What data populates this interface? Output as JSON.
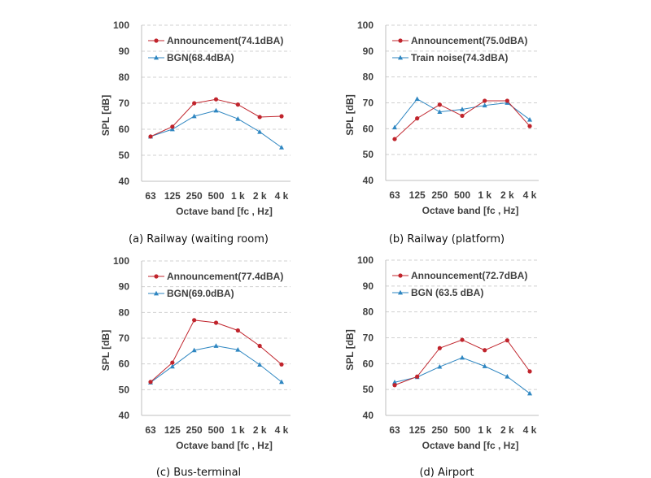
{
  "chart_data": [
    {
      "type": "line",
      "caption": "(a) Railway (waiting room)",
      "xlabel": "Octave band [fc , Hz]",
      "ylabel": "SPL [dB]",
      "ylim": [
        40,
        100
      ],
      "yticks": [
        40,
        50,
        60,
        70,
        80,
        90,
        100
      ],
      "grid": "horizontal dashed",
      "legend_position": "top-left",
      "categories": [
        "63",
        "125",
        "250",
        "500",
        "1 k",
        "2 k",
        "4 k"
      ],
      "series": [
        {
          "name": "Announcement(74.1dBA)",
          "color": "#c0242c",
          "marker": "circle",
          "values": [
            57.2,
            61,
            70,
            71.5,
            69.5,
            64.7,
            65
          ]
        },
        {
          "name": "BGN(68.4dBA)",
          "color": "#2e86c1",
          "marker": "triangle",
          "values": [
            57.2,
            60,
            65,
            67.2,
            64,
            59,
            53
          ]
        }
      ]
    },
    {
      "type": "line",
      "caption": "(b) Railway (platform)",
      "xlabel": "Octave band [fc , Hz]",
      "ylabel": "SPL [dB]",
      "ylim": [
        40,
        100
      ],
      "yticks": [
        40,
        50,
        60,
        70,
        80,
        90,
        100
      ],
      "grid": "horizontal dashed",
      "legend_position": "top-left",
      "categories": [
        "63",
        "125",
        "250",
        "500",
        "1 k",
        "2 k",
        "4 k"
      ],
      "series": [
        {
          "name": "Announcement(75.0dBA)",
          "color": "#c0242c",
          "marker": "circle",
          "values": [
            56,
            64,
            69.3,
            65,
            70.8,
            70.8,
            61
          ]
        },
        {
          "name": "Train noise(74.3dBA)",
          "color": "#2e86c1",
          "marker": "triangle",
          "values": [
            60.5,
            71.5,
            66.5,
            67.5,
            69,
            70,
            63.5
          ]
        }
      ]
    },
    {
      "type": "line",
      "caption": "(c) Bus-terminal",
      "xlabel": "Octave band [fc , Hz]",
      "ylabel": "SPL [dB]",
      "ylim": [
        40,
        100
      ],
      "yticks": [
        40,
        50,
        60,
        70,
        80,
        90,
        100
      ],
      "grid": "horizontal dashed",
      "legend_position": "top-left",
      "categories": [
        "63",
        "125",
        "250",
        "500",
        "1 k",
        "2 k",
        "4 k"
      ],
      "series": [
        {
          "name": "Announcement(77.4dBA)",
          "color": "#c0242c",
          "marker": "circle",
          "values": [
            53,
            60.5,
            77,
            76,
            73,
            67,
            59.8
          ]
        },
        {
          "name": "BGN(69.0dBA)",
          "color": "#2e86c1",
          "marker": "triangle",
          "values": [
            52.8,
            59,
            65.3,
            67,
            65.5,
            59.7,
            53
          ]
        }
      ]
    },
    {
      "type": "line",
      "caption": "(d) Airport",
      "xlabel": "Octave band [fc , Hz]",
      "ylabel": "SPL [dB]",
      "ylim": [
        40,
        100
      ],
      "yticks": [
        40,
        50,
        60,
        70,
        80,
        90,
        100
      ],
      "grid": "horizontal dashed",
      "legend_position": "top-left",
      "categories": [
        "63",
        "125",
        "250",
        "500",
        "1 k",
        "2 k",
        "4 k"
      ],
      "series": [
        {
          "name": "Announcement(72.7dBA)",
          "color": "#c0242c",
          "marker": "circle",
          "values": [
            51.7,
            55,
            66,
            69.2,
            65.2,
            69,
            57
          ]
        },
        {
          "name": "BGN (63.5 dBA)",
          "color": "#2e86c1",
          "marker": "triangle",
          "values": [
            52.8,
            54.8,
            58.8,
            62.3,
            59,
            55,
            48.5
          ]
        }
      ]
    }
  ]
}
